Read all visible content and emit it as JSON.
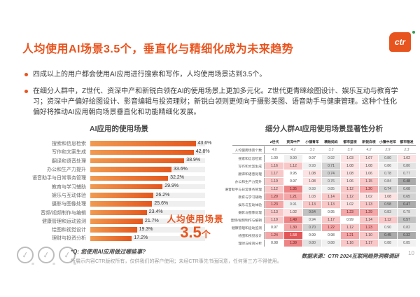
{
  "header": {
    "title": "人均使用AI场景3.5个，垂直化与精细化成为未来趋势",
    "logo_text": "ctr"
  },
  "bullets": [
    "四成以上的用户都会使用AI应用进行搜索和写作，人均使用场景达到3.5个。",
    "在细分人群中，Z世代、资深中产和新锐白领在AI的使用场景上更加多元化。Z世代更青睐绘图设计、娱乐互动与教育学习；资深中产偏好绘图设计、影音编辑与投资理财；新锐白领则更倾向于摄影美图、语音助手与健康管理。这种个性化偏好将推动AI应用朝向场景垂直化和功能精细化发展。"
  ],
  "colors": {
    "accent_orange": "#e8541e",
    "bar_gradient_start": "#f09a50",
    "bar_gradient_end": "#e4571d",
    "heat_strong_red": "#e25658",
    "heat_dark_gray": "#ababab",
    "logo_green": "#2e9e4f"
  },
  "chart_data": [
    {
      "type": "bar",
      "orientation": "horizontal",
      "title": "AI应用的使用场景",
      "categories": [
        "搜索和信息检索",
        "写作和文案生成",
        "翻译和语音处理",
        "办公和生产力提升",
        "语音助手与日常事务管理",
        "教育与学习辅助",
        "娱乐与互动体验",
        "摄影与图像处理",
        "音频/视频制作与编辑",
        "健康管理和运动监测",
        "绘图和视觉设计",
        "理财与投资分析"
      ],
      "values": [
        43.6,
        42.8,
        38.9,
        33.6,
        32.2,
        29.9,
        26.2,
        25.6,
        23.4,
        21.7,
        19.3,
        17.2
      ],
      "unit": "%",
      "xlim": [
        0,
        47.5
      ],
      "annotation": {
        "text": "人均使用场景",
        "value": "3.5",
        "value_unit": "个"
      }
    },
    {
      "type": "heatmap",
      "title": "细分人群AI应用使用场景显著性分析",
      "columns": [
        "Z世代",
        "资深中产",
        "小镇青年",
        "精致妈妈",
        "都市蓝领",
        "新锐白领",
        "小镇中老年",
        "都市银发"
      ],
      "avg_row": {
        "label": "人均使用场景个数",
        "values": [
          "4.8",
          "4.2",
          "3.3",
          "3.3",
          "3.9",
          "4.2",
          "2.9",
          "2.3"
        ]
      },
      "rows": [
        {
          "label": "搜索和信息检索",
          "values": [
            1.0,
            0.9,
            0.97,
            0.92,
            1.03,
            1.07,
            0.8,
            1.02
          ]
        },
        {
          "label": "写作和文案生成",
          "values": [
            1.16,
            1.12,
            0.93,
            0.71,
            1.08,
            1.08,
            0.86,
            0.8
          ]
        },
        {
          "label": "翻译和语音处理",
          "values": [
            1.17,
            0.95,
            1.08,
            0.74,
            1.08,
            1.06,
            0.78,
            0.77
          ]
        },
        {
          "label": "办公和生产力提升",
          "values": [
            1.19,
            0.97,
            1.08,
            0.76,
            1.06,
            1.15,
            0.84,
            0.48
          ]
        },
        {
          "label": "语音助手与日常事务管理",
          "values": [
            1.12,
            1.35,
            0.93,
            0.85,
            1.12,
            1.2,
            0.74,
            0.68
          ]
        },
        {
          "label": "教育与学习辅助",
          "values": [
            1.2,
            1.21,
            1.03,
            1.14,
            1.12,
            1.02,
            1.08,
            0.65
          ]
        },
        {
          "label": "娱乐与互动体验",
          "values": [
            1.23,
            0.91,
            1.13,
            1.13,
            1.02,
            1.13,
            0.58,
            0.47
          ]
        },
        {
          "label": "摄影与图像处理",
          "values": [
            1.13,
            1.02,
            0.54,
            0.95,
            1.23,
            1.29,
            0.83,
            0.79
          ]
        },
        {
          "label": "音频/视频制作与编辑",
          "values": [
            1.19,
            1.49,
            0.94,
            1.17,
            0.99,
            1.14,
            1.12,
            0.57
          ]
        },
        {
          "label": "健康管理和运动监测",
          "values": [
            0.97,
            1.3,
            0.7,
            1.22,
            1.12,
            1.23,
            0.9,
            0.82
          ]
        },
        {
          "label": "绘图和视觉设计",
          "values": [
            1.24,
            1.58,
            0.99,
            0.98,
            1.21,
            1.1,
            0.45,
            0.32
          ]
        },
        {
          "label": "理财与投资分析",
          "values": [
            0.98,
            1.39,
            0.8,
            0.88,
            1.16,
            1.17,
            0.88,
            0.85
          ]
        }
      ]
    }
  ],
  "footer": {
    "question": "*Q: 您使用AI应用做过哪些事?",
    "copyright": "所展示内容CTR版权所有，仅供我们的客户使用；未经CTR事先书面同意，任何第三方不得使用。",
    "source": "数据来源：CTR 2024互联网趋势洞察调研",
    "page": "10"
  }
}
